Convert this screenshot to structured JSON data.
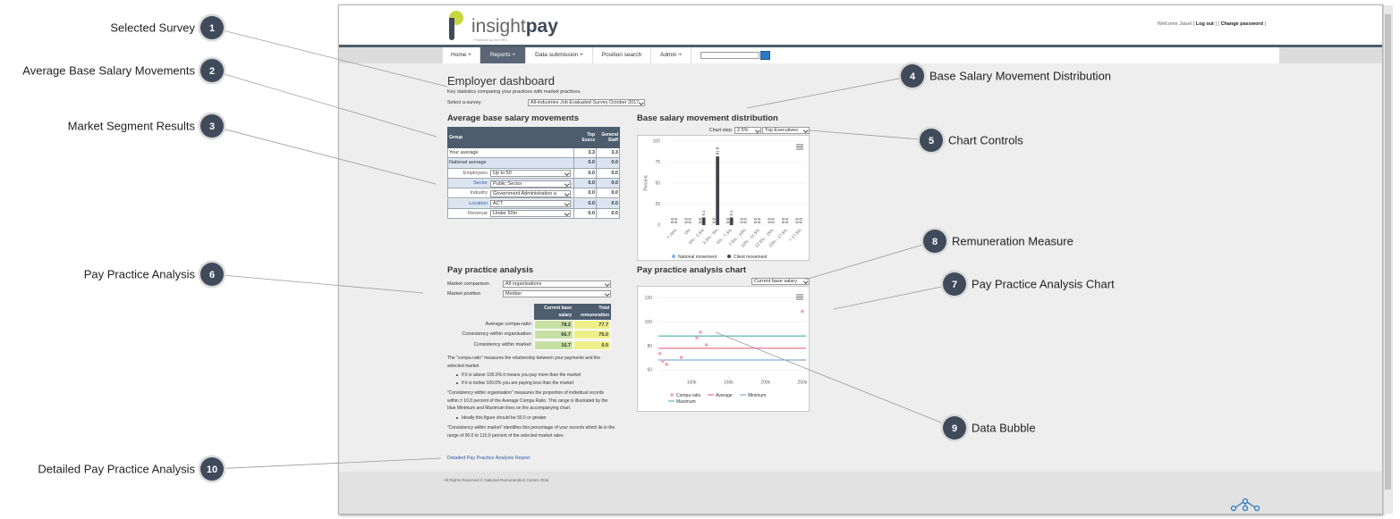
{
  "callouts": [
    {
      "number": 1,
      "label": "Selected Survey"
    },
    {
      "number": 2,
      "label": "Average Base Salary Movements"
    },
    {
      "number": 3,
      "label": "Market Segment Results"
    },
    {
      "number": 4,
      "label": "Base Salary Movement Distribution"
    },
    {
      "number": 5,
      "label": "Chart Controls"
    },
    {
      "number": 6,
      "label": "Pay Practice Analysis"
    },
    {
      "number": 7,
      "label": "Pay Practice Analysis Chart"
    },
    {
      "number": 8,
      "label": "Remuneration Measure"
    },
    {
      "number": 9,
      "label": "Data Bubble"
    },
    {
      "number": 10,
      "label": "Detailed Pay Practice Analysis"
    }
  ],
  "header": {
    "logo": [
      "insight",
      "pay"
    ],
    "powered_by": "Powered by the NRC",
    "welcome": "Welcome Jaisel [",
    "log_out": "Log out",
    "middle": "] [",
    "change_password": "Change password",
    "end": "]"
  },
  "nav": [
    "Home +",
    "Reports +",
    "Data submission +",
    "Position search",
    "Admin +"
  ],
  "page": {
    "title": "Employer dashboard",
    "subtitle": "Key statistics comparing your practices with market practices.",
    "survey_label": "Select a survey",
    "survey": "All-industries Job Evaluated Survey October 2017"
  },
  "salary_table": {
    "title": "Average base salary movements",
    "columns": [
      "Group",
      "Top Execs",
      "General Staff"
    ],
    "rows": [
      {
        "label": "Your average",
        "top": "3.3",
        "general": "3.3"
      },
      {
        "label": "National average",
        "top": "0.0",
        "general": "0.0"
      },
      {
        "label": "Employees",
        "filter": "Up to 50",
        "top": "0.0",
        "general": "0.0"
      },
      {
        "label": "Sector",
        "filter": "Public Sector",
        "top": "0.0",
        "general": "0.0"
      },
      {
        "label": "Industry",
        "filter": "Government Administration a",
        "top": "0.0",
        "general": "0.0"
      },
      {
        "label": "Location",
        "filter": "ACT",
        "top": "0.0",
        "general": "0.0"
      },
      {
        "label": "Revenue",
        "filter": "Under 50m",
        "top": "0.0",
        "general": "0.0"
      }
    ]
  },
  "pay_practice": {
    "title": "Pay practice analysis",
    "comparison_label": "Market comparison",
    "comparison": "All organisations",
    "position_label": "Market position",
    "position": "Median",
    "columns": [
      "Current base salary",
      "Total remuneration"
    ],
    "rows": [
      {
        "label": "Average compa-ratio:",
        "base": "78.2",
        "total": "77.7"
      },
      {
        "label": "Consistency within organisation:",
        "base": "66.7",
        "total": "75.0"
      },
      {
        "label": "Consistency within market:",
        "base": "16.7",
        "total": "0.0"
      }
    ],
    "notes": [
      {
        "text": "The \"compa ratio\" measures the relationship between your payments and the selected market",
        "bullets": [
          "If it is above 100.0% it means you pay more than the market",
          "If it is below 100.0% you are paying less than the market"
        ]
      },
      {
        "text": "\"Consistency within organisation\" measures the proportion of individual records within ± 10.0 percent of the Average Compa Ratio. This range is illustrated by the blue Minimum and Maximum lines on the accompanying chart.",
        "bullets": [
          "Ideally this figure should be 50.0 or greater"
        ]
      },
      {
        "text": "\"Consistency within market\" identifies this percentage of your records which lie in the range of 90.0 to 110.0 percent of the selected market rates",
        "bullets": []
      }
    ],
    "link": "Detailed Pay Practice Analysis Report"
  },
  "chart_data": [
    {
      "type": "bar",
      "title": "Base salary movement distribution",
      "chart_step_label": "Chart step",
      "chart_step": "2.5%",
      "group": "Top Executives",
      "y_label": "Percent",
      "categories": [
        "< zero",
        "0%",
        "0% - 2.5%",
        "2.5% - 5%",
        "5% - 7.5%",
        "7.5% - 10%",
        "10% - 12.5%",
        "12.5% - 15%",
        "15% - 17.5%",
        "> 17.5%"
      ],
      "series": [
        {
          "name": "National movement",
          "color": "#7cb5ec",
          "values": [
            0,
            0,
            0,
            0,
            0,
            0,
            0,
            0,
            0,
            0
          ],
          "value_labels": [
            "0.0",
            "0.0",
            "0.0",
            "0.0",
            "0.0",
            "0.0",
            "0.0",
            "0.0",
            "0.0",
            "0.0"
          ]
        },
        {
          "name": "Client movement",
          "color": "#434348",
          "values": [
            0,
            0,
            9.1,
            81.8,
            9.1,
            0,
            0,
            0,
            0,
            0
          ],
          "value_labels": [
            "0.0",
            "0.0",
            "9.1",
            "81.8",
            "9.1",
            "0.0",
            "0.0",
            "0.0",
            "0.0",
            "0.0"
          ]
        }
      ],
      "ylim": [
        0,
        100
      ],
      "yticks": [
        0,
        25,
        50,
        75,
        100
      ],
      "grid": true
    },
    {
      "type": "scatter",
      "title": "Pay practice analysis chart",
      "measure": "Current base salary",
      "series": [
        {
          "name": "Compa ratio",
          "color": "#f4a3b4",
          "x": [
            57000,
            61000,
            66000,
            86000,
            107000,
            112000,
            120000,
            250000
          ],
          "values": [
            73.8,
            67.4,
            64.8,
            70.6,
            87,
            91.6,
            81,
            109
          ]
        }
      ],
      "reference_lines": [
        {
          "name": "Average",
          "color": "#e4556f",
          "value": 78.2
        },
        {
          "name": "Minimum",
          "color": "#5a9bd5",
          "value": 68.4
        },
        {
          "name": "Maximum",
          "color": "#2fa4a8",
          "value": 88.4
        }
      ],
      "xlim": [
        55000,
        255000
      ],
      "xticks": [
        {
          "value": 100000,
          "label": "100k"
        },
        {
          "value": 150000,
          "label": "150k"
        },
        {
          "value": 200000,
          "label": "200k"
        },
        {
          "value": 250000,
          "label": "250k"
        }
      ],
      "ylim": [
        55,
        125
      ],
      "yticks": [
        60,
        80,
        100,
        120
      ],
      "grid": true
    }
  ],
  "footer": "All Rights Reserved © National Remuneration Centre 2016"
}
